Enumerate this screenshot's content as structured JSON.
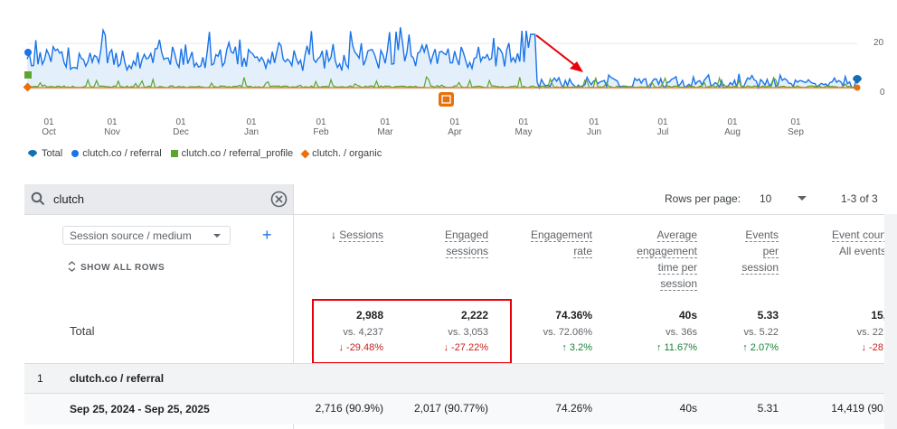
{
  "chart": {
    "y_ticks": [
      "20",
      "0"
    ],
    "months": [
      {
        "day": "01",
        "name": "Oct"
      },
      {
        "day": "01",
        "name": "Nov"
      },
      {
        "day": "01",
        "name": "Dec"
      },
      {
        "day": "01",
        "name": "Jan"
      },
      {
        "day": "01",
        "name": "Feb"
      },
      {
        "day": "01",
        "name": "Mar"
      },
      {
        "day": "01",
        "name": "Apr"
      },
      {
        "day": "01",
        "name": "May"
      },
      {
        "day": "01",
        "name": "Jun"
      },
      {
        "day": "01",
        "name": "Jul"
      },
      {
        "day": "01",
        "name": "Aug"
      },
      {
        "day": "01",
        "name": "Sep"
      }
    ],
    "legend": [
      "Total",
      "clutch.co / referral",
      "clutch.co / referral_profile",
      "clutch. / organic"
    ],
    "colors": {
      "referral": "#1a73e8",
      "profile": "#5ea52f",
      "organic": "#e8710a",
      "total": "#0f6fb7",
      "arrow": "#e8000b"
    }
  },
  "search": {
    "query": "clutch"
  },
  "pagination": {
    "rows_label": "Rows per page:",
    "rows_value": "10",
    "range": "1-3 of 3"
  },
  "dimension": {
    "label": "Session source / medium",
    "show_all": "SHOW ALL ROWS"
  },
  "columns": [
    {
      "lines": [
        "Sessions"
      ],
      "sorted": true
    },
    {
      "lines": [
        "Engaged",
        "sessions"
      ]
    },
    {
      "lines": [
        "Engagement",
        "rate"
      ]
    },
    {
      "lines": [
        "Average",
        "engagement",
        "time per",
        "session"
      ]
    },
    {
      "lines": [
        "Events",
        "per",
        "session"
      ]
    },
    {
      "lines": [
        "Event coun",
        "All events"
      ]
    }
  ],
  "totals": {
    "label": "Total",
    "cells": [
      {
        "value": "2,988",
        "vs": "vs. 4,237",
        "change": "↓ -29.48%",
        "dir": "neg"
      },
      {
        "value": "2,222",
        "vs": "vs. 3,053",
        "change": "↓ -27.22%",
        "dir": "neg"
      },
      {
        "value": "74.36%",
        "vs": "vs. 72.06%",
        "change": "↑ 3.2%",
        "dir": "pos"
      },
      {
        "value": "40s",
        "vs": "vs. 36s",
        "change": "↑ 11.67%",
        "dir": "pos"
      },
      {
        "value": "5.33",
        "vs": "vs. 5.22",
        "change": "↑ 2.07%",
        "dir": "pos"
      },
      {
        "value": "15,",
        "vs": "vs. 22,",
        "change": "↓ -28.",
        "dir": "neg"
      }
    ]
  },
  "rows": [
    {
      "index": "1",
      "name": "clutch.co / referral"
    },
    {
      "name": "Sep 25, 2024 - Sep 25, 2025",
      "cells": [
        "2,716 (90.9%)",
        "2,017 (90.77%)",
        "74.26%",
        "40s",
        "5.31",
        "14,419 (90."
      ]
    }
  ]
}
